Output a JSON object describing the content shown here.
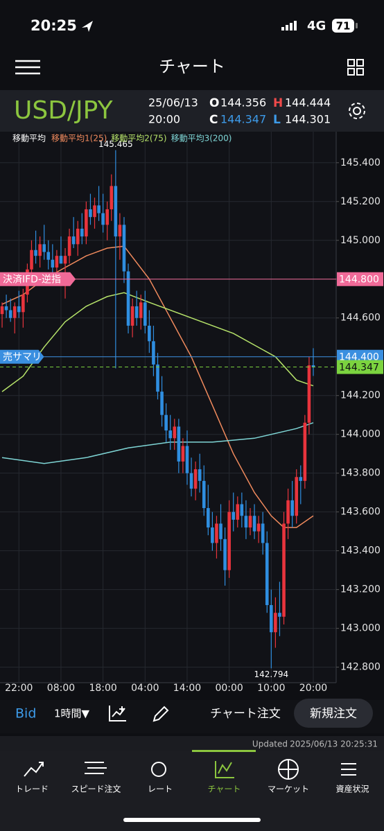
{
  "status_bar": {
    "time": "20:25",
    "network": "4G",
    "battery": "71"
  },
  "header": {
    "title": "チャート"
  },
  "quote": {
    "symbol": "USD/JPY",
    "date": "25/06/13",
    "time": "20:00",
    "fields": [
      {
        "key": "O",
        "value": "144.356"
      },
      {
        "key": "H",
        "value": "144.444"
      },
      {
        "key": "C",
        "value": "144.347"
      },
      {
        "key": "L",
        "value": "144.301"
      }
    ]
  },
  "chart_data": {
    "type": "candlestick",
    "legend_title": "移動平均",
    "categories": [
      null,
      null,
      null,
      null,
      "22:00",
      null,
      null,
      null,
      null,
      null,
      null,
      null,
      null,
      null,
      "08:00",
      null,
      null,
      null,
      null,
      null,
      null,
      null,
      null,
      null,
      "18:00",
      null,
      null,
      null,
      null,
      null,
      null,
      null,
      null,
      null,
      "04:00",
      null,
      null,
      null,
      null,
      null,
      null,
      null,
      null,
      null,
      "14:00",
      null,
      null,
      null,
      null,
      null,
      null,
      null,
      null,
      null,
      "00:00",
      null,
      null,
      null,
      null,
      null,
      null,
      null,
      null,
      null,
      "10:00",
      null,
      null,
      null,
      null,
      null,
      null,
      null,
      null,
      null,
      "20:00"
    ],
    "open": [
      144.62,
      144.66,
      144.64,
      144.6,
      144.66,
      144.63,
      144.72,
      144.85,
      144.95,
      144.92,
      144.98,
      144.94,
      144.9,
      144.86,
      144.92,
      144.88,
      144.92,
      145.02,
      144.98,
      145.06,
      145.02,
      145.16,
      145.12,
      145.18,
      145.14,
      145.08,
      145.16,
      145.28,
      145.02,
      145.08,
      144.84,
      144.56,
      144.66,
      144.6,
      144.68,
      144.56,
      144.48,
      144.36,
      144.22,
      144.1,
      144.02,
      143.98,
      144.04,
      143.86,
      143.94,
      143.8,
      143.72,
      143.82,
      143.76,
      143.62,
      143.52,
      143.44,
      143.54,
      143.46,
      143.3,
      143.6,
      143.56,
      143.64,
      143.58,
      143.52,
      143.58,
      143.5,
      143.54,
      143.44,
      143.12,
      142.98,
      143.08,
      143.06,
      143.54,
      143.66,
      143.58,
      143.78,
      143.76,
      144.06,
      144.356
    ],
    "high": [
      144.68,
      144.72,
      144.7,
      144.68,
      144.74,
      144.75,
      144.88,
      145.0,
      145.05,
      145.02,
      145.08,
      145.0,
      144.98,
      144.95,
      145.02,
      144.96,
      145.06,
      145.12,
      145.1,
      145.14,
      145.2,
      145.24,
      145.22,
      145.28,
      145.24,
      145.2,
      145.34,
      145.465,
      145.14,
      145.12,
      144.88,
      144.7,
      144.74,
      144.72,
      144.74,
      144.64,
      144.56,
      144.42,
      144.3,
      144.16,
      144.1,
      144.08,
      144.08,
      143.98,
      144.02,
      143.88,
      143.86,
      143.9,
      143.84,
      143.74,
      143.6,
      143.58,
      143.64,
      143.52,
      143.66,
      143.7,
      143.68,
      143.7,
      143.66,
      143.62,
      143.64,
      143.58,
      143.6,
      143.5,
      143.2,
      143.16,
      143.24,
      143.6,
      143.72,
      143.76,
      143.82,
      143.84,
      144.1,
      144.4,
      144.444
    ],
    "low": [
      144.55,
      144.6,
      144.58,
      144.52,
      144.6,
      144.55,
      144.68,
      144.8,
      144.88,
      144.86,
      144.9,
      144.85,
      144.82,
      144.78,
      144.88,
      144.7,
      144.88,
      144.96,
      144.92,
      144.98,
      144.98,
      145.08,
      145.06,
      145.1,
      145.04,
      145.0,
      145.1,
      144.34,
      144.9,
      144.78,
      144.52,
      144.5,
      144.56,
      144.54,
      144.52,
      144.42,
      144.3,
      144.18,
      144.04,
      143.96,
      143.92,
      143.92,
      143.8,
      143.8,
      143.74,
      143.68,
      143.66,
      143.7,
      143.58,
      143.48,
      143.4,
      143.36,
      143.4,
      143.22,
      143.26,
      143.5,
      143.52,
      143.52,
      143.46,
      143.48,
      143.46,
      143.44,
      143.38,
      143.08,
      142.794,
      142.9,
      142.96,
      143.02,
      143.46,
      143.52,
      143.54,
      143.64,
      143.72,
      144.0,
      144.301
    ],
    "close": [
      144.66,
      144.64,
      144.6,
      144.66,
      144.63,
      144.72,
      144.85,
      144.95,
      144.92,
      144.98,
      144.94,
      144.9,
      144.86,
      144.92,
      144.88,
      144.92,
      145.02,
      144.98,
      145.06,
      145.02,
      145.16,
      145.12,
      145.18,
      145.14,
      145.08,
      145.16,
      145.28,
      145.02,
      145.08,
      144.84,
      144.56,
      144.66,
      144.6,
      144.68,
      144.56,
      144.48,
      144.36,
      144.22,
      144.1,
      144.02,
      143.98,
      144.04,
      143.86,
      143.94,
      143.8,
      143.72,
      143.82,
      143.76,
      143.62,
      143.52,
      143.44,
      143.54,
      143.46,
      143.3,
      143.6,
      143.56,
      143.64,
      143.58,
      143.52,
      143.58,
      143.5,
      143.54,
      143.44,
      143.12,
      142.98,
      143.08,
      143.06,
      143.54,
      143.66,
      143.58,
      143.78,
      143.76,
      144.06,
      144.356,
      144.347
    ],
    "up_color": "#e8343d",
    "down_color": "#2f8ee0",
    "ma_series": [
      {
        "name": "移動平均1(25)",
        "color": "#f08a5d",
        "x": [
          0,
          5,
          10,
          15,
          20,
          25,
          29,
          35,
          40,
          45,
          50,
          55,
          60,
          64,
          67,
          70,
          74
        ],
        "values": [
          144.67,
          144.72,
          144.8,
          144.86,
          144.92,
          144.96,
          144.97,
          144.8,
          144.6,
          144.4,
          144.15,
          143.9,
          143.7,
          143.58,
          143.52,
          143.52,
          143.58
        ]
      },
      {
        "name": "移動平均2(75)",
        "color": "#b6e36a",
        "x": [
          0,
          5,
          10,
          15,
          20,
          25,
          29,
          35,
          45,
          55,
          65,
          70,
          74
        ],
        "values": [
          144.22,
          144.3,
          144.45,
          144.58,
          144.66,
          144.71,
          144.73,
          144.68,
          144.6,
          144.52,
          144.4,
          144.28,
          144.25
        ]
      },
      {
        "name": "移動平均3(200)",
        "color": "#7fd6d6",
        "x": [
          0,
          10,
          20,
          30,
          40,
          50,
          60,
          70,
          74
        ],
        "values": [
          143.88,
          143.85,
          143.88,
          143.93,
          143.96,
          143.96,
          143.98,
          144.03,
          144.06
        ]
      }
    ],
    "ylim": [
      142.72,
      145.56
    ],
    "yticks": [
      {
        "value": 142.8,
        "label": "142.800"
      },
      {
        "value": 143.0,
        "label": "143.000"
      },
      {
        "value": 143.2,
        "label": "143.200"
      },
      {
        "value": 143.4,
        "label": "143.400"
      },
      {
        "value": 143.6,
        "label": "143.600"
      },
      {
        "value": 143.8,
        "label": "143.800"
      },
      {
        "value": 144.0,
        "label": "144.000"
      },
      {
        "value": 144.2,
        "label": "144.200"
      },
      {
        "value": 144.4,
        "label": "144.400"
      },
      {
        "value": 144.6,
        "label": "144.600"
      },
      {
        "value": 144.8,
        "label": "144.800"
      },
      {
        "value": 145.0,
        "label": "145.000"
      },
      {
        "value": 145.2,
        "label": "145.200"
      },
      {
        "value": 145.4,
        "label": "145.400"
      }
    ],
    "grid": true,
    "max_label": "145.465",
    "min_label": "142.794",
    "price_lines": [
      {
        "label": "決済IFD-逆指",
        "value": 144.8,
        "value_label": "144.800",
        "color": "#f06a98"
      },
      {
        "label": "売サマリ",
        "value": 144.4,
        "value_label": "144.400",
        "color": "#3a8fe0"
      },
      {
        "value": 144.347,
        "value_label": "144.347",
        "color": "#7bd33f",
        "style": "dashed"
      }
    ]
  },
  "toolbar": {
    "price_type": "Bid",
    "interval": "1時間▼",
    "chart_order": "チャート注文",
    "new_order": "新規注文"
  },
  "updated": {
    "label": "Updated",
    "timestamp": "2025/06/13 20:25:31"
  },
  "tabs": [
    "トレード",
    "スピード注文",
    "レート",
    "チャート",
    "マーケット",
    "資産状況"
  ]
}
